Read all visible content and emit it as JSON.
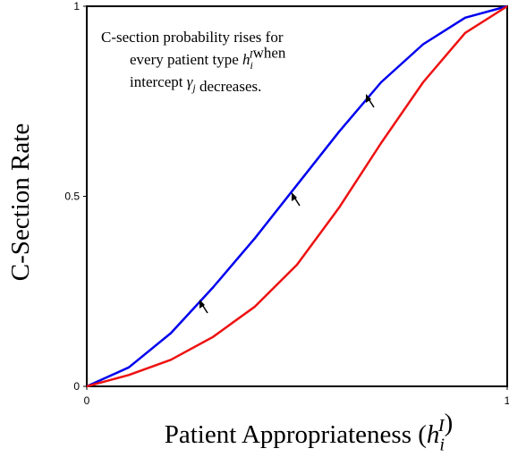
{
  "chart_data": {
    "type": "line",
    "x": [
      0,
      0.1,
      0.2,
      0.3,
      0.4,
      0.5,
      0.6,
      0.7,
      0.8,
      0.9,
      1
    ],
    "series": [
      {
        "color": "#0000ee",
        "values": [
          0,
          0.05,
          0.14,
          0.26,
          0.39,
          0.53,
          0.67,
          0.8,
          0.9,
          0.97,
          1
        ]
      },
      {
        "color": "#ee1111",
        "values": [
          0,
          0.03,
          0.07,
          0.13,
          0.21,
          0.32,
          0.47,
          0.64,
          0.8,
          0.93,
          1
        ]
      }
    ],
    "xlim": [
      0,
      1
    ],
    "ylim": [
      0,
      1
    ],
    "xticks": [
      0,
      1
    ],
    "yticks": [
      0,
      0.5,
      1
    ],
    "ylabel": "C-Section Rate",
    "xlabel": {
      "text": "Patient Appropriateness (",
      "math": {
        "base": "h",
        "sub": "i",
        "sup": "I"
      },
      "close": ")"
    },
    "annotation": [
      [
        "C-section probability rises for"
      ],
      [
        "every patient type ",
        {
          "base": "h",
          "sub": "i",
          "sup": "I"
        },
        "when"
      ],
      [
        "intercept ",
        {
          "base": "γ",
          "sub": "j"
        },
        " decreases."
      ]
    ]
  }
}
